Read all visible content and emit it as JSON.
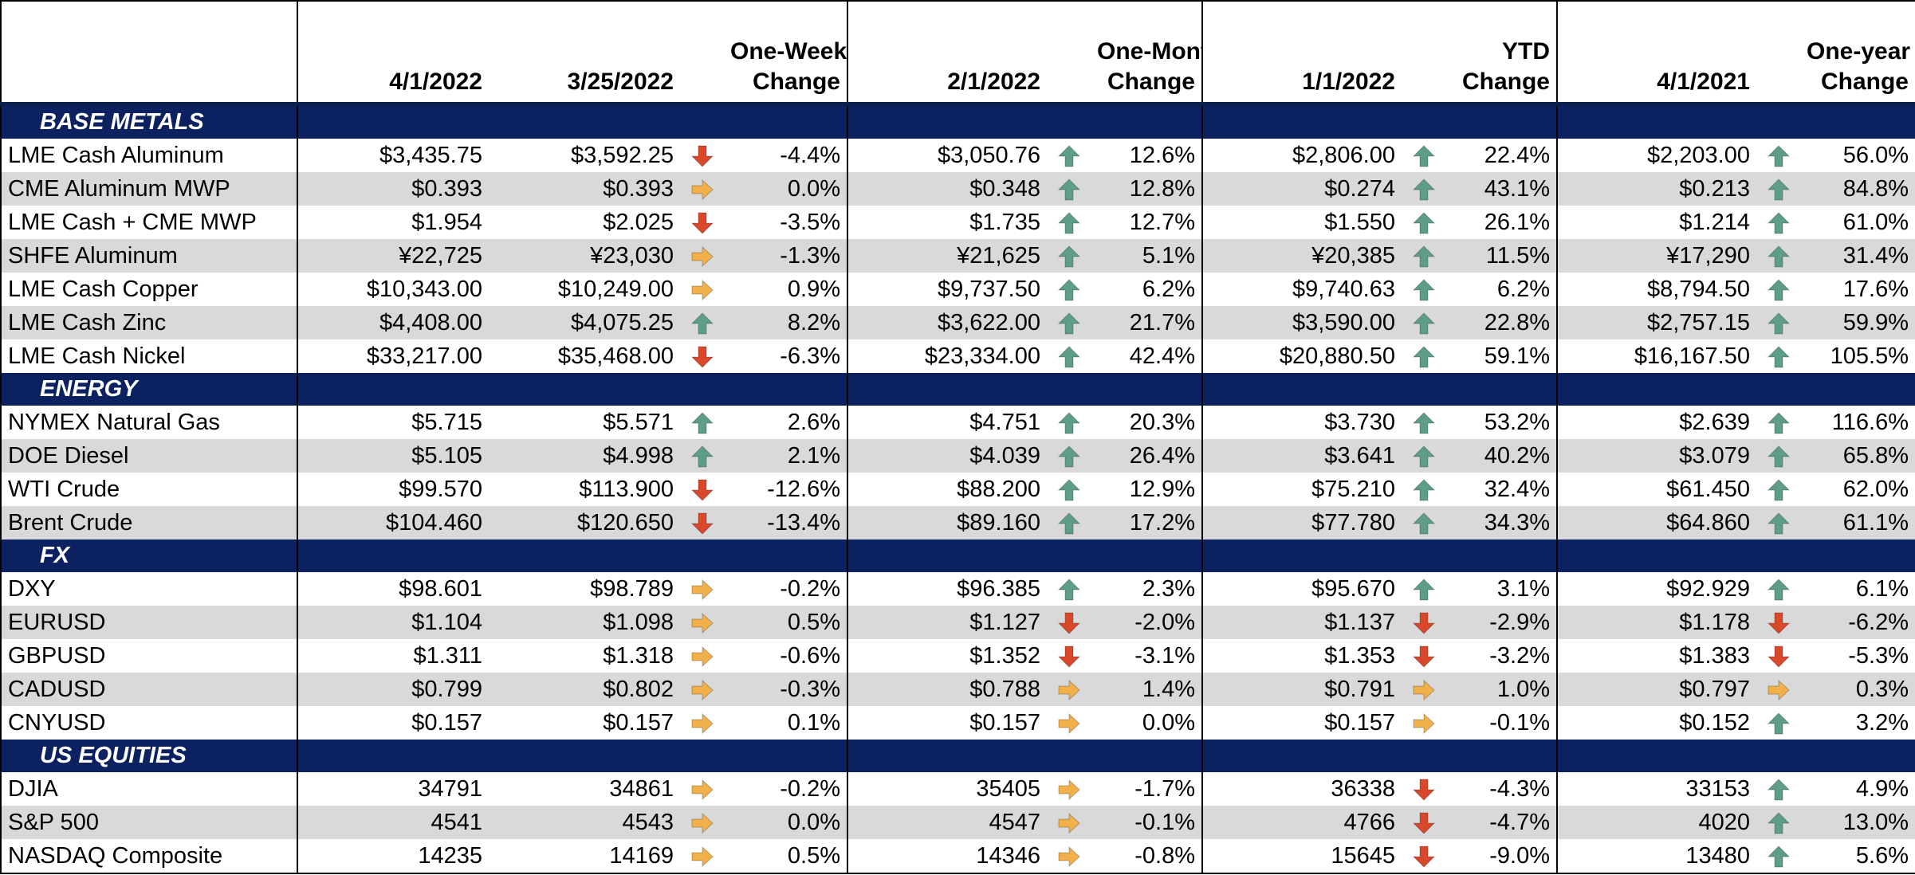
{
  "colors": {
    "header_band": "#0b2160",
    "alt_row": "#d9d9d9",
    "up": "#5f9e86",
    "down": "#d9482b",
    "flat": "#f1b04a"
  },
  "headers": [
    "",
    "4/1/2022",
    "3/25/2022",
    "",
    "One-Week Change",
    "2/1/2022",
    "",
    "One-Month Change",
    "1/1/2022",
    "",
    "YTD Change",
    "4/1/2021",
    "",
    "One-year Change"
  ],
  "sections": [
    {
      "title": "BASE METALS",
      "rows": [
        {
          "name": "LME Cash Aluminum",
          "v1": "$3,435.75",
          "v2": "$3,592.25",
          "a1": "down",
          "c1": "-4.4%",
          "v3": "$3,050.76",
          "a2": "up",
          "c2": "12.6%",
          "v4": "$2,806.00",
          "a3": "up",
          "c3": "22.4%",
          "v5": "$2,203.00",
          "a4": "up",
          "c4": "56.0%"
        },
        {
          "name": "CME Aluminum MWP",
          "v1": "$0.393",
          "v2": "$0.393",
          "a1": "flat",
          "c1": "0.0%",
          "v3": "$0.348",
          "a2": "up",
          "c2": "12.8%",
          "v4": "$0.274",
          "a3": "up",
          "c3": "43.1%",
          "v5": "$0.213",
          "a4": "up",
          "c4": "84.8%"
        },
        {
          "name": "LME Cash + CME MWP",
          "v1": "$1.954",
          "v2": "$2.025",
          "a1": "down",
          "c1": "-3.5%",
          "v3": "$1.735",
          "a2": "up",
          "c2": "12.7%",
          "v4": "$1.550",
          "a3": "up",
          "c3": "26.1%",
          "v5": "$1.214",
          "a4": "up",
          "c4": "61.0%"
        },
        {
          "name": "SHFE Aluminum",
          "v1": "¥22,725",
          "v2": "¥23,030",
          "a1": "flat",
          "c1": "-1.3%",
          "v3": "¥21,625",
          "a2": "up",
          "c2": "5.1%",
          "v4": "¥20,385",
          "a3": "up",
          "c3": "11.5%",
          "v5": "¥17,290",
          "a4": "up",
          "c4": "31.4%"
        },
        {
          "name": "LME Cash Copper",
          "v1": "$10,343.00",
          "v2": "$10,249.00",
          "a1": "flat",
          "c1": "0.9%",
          "v3": "$9,737.50",
          "a2": "up",
          "c2": "6.2%",
          "v4": "$9,740.63",
          "a3": "up",
          "c3": "6.2%",
          "v5": "$8,794.50",
          "a4": "up",
          "c4": "17.6%"
        },
        {
          "name": "LME Cash Zinc",
          "v1": "$4,408.00",
          "v2": "$4,075.25",
          "a1": "up",
          "c1": "8.2%",
          "v3": "$3,622.00",
          "a2": "up",
          "c2": "21.7%",
          "v4": "$3,590.00",
          "a3": "up",
          "c3": "22.8%",
          "v5": "$2,757.15",
          "a4": "up",
          "c4": "59.9%"
        },
        {
          "name": "LME Cash Nickel",
          "v1": "$33,217.00",
          "v2": "$35,468.00",
          "a1": "down",
          "c1": "-6.3%",
          "v3": "$23,334.00",
          "a2": "up",
          "c2": "42.4%",
          "v4": "$20,880.50",
          "a3": "up",
          "c3": "59.1%",
          "v5": "$16,167.50",
          "a4": "up",
          "c4": "105.5%"
        }
      ]
    },
    {
      "title": "ENERGY",
      "rows": [
        {
          "name": "NYMEX Natural Gas",
          "v1": "$5.715",
          "v2": "$5.571",
          "a1": "up",
          "c1": "2.6%",
          "v3": "$4.751",
          "a2": "up",
          "c2": "20.3%",
          "v4": "$3.730",
          "a3": "up",
          "c3": "53.2%",
          "v5": "$2.639",
          "a4": "up",
          "c4": "116.6%"
        },
        {
          "name": "DOE Diesel",
          "v1": "$5.105",
          "v2": "$4.998",
          "a1": "up",
          "c1": "2.1%",
          "v3": "$4.039",
          "a2": "up",
          "c2": "26.4%",
          "v4": "$3.641",
          "a3": "up",
          "c3": "40.2%",
          "v5": "$3.079",
          "a4": "up",
          "c4": "65.8%"
        },
        {
          "name": "WTI Crude",
          "v1": "$99.570",
          "v2": "$113.900",
          "a1": "down",
          "c1": "-12.6%",
          "v3": "$88.200",
          "a2": "up",
          "c2": "12.9%",
          "v4": "$75.210",
          "a3": "up",
          "c3": "32.4%",
          "v5": "$61.450",
          "a4": "up",
          "c4": "62.0%"
        },
        {
          "name": "Brent Crude",
          "v1": "$104.460",
          "v2": "$120.650",
          "a1": "down",
          "c1": "-13.4%",
          "v3": "$89.160",
          "a2": "up",
          "c2": "17.2%",
          "v4": "$77.780",
          "a3": "up",
          "c3": "34.3%",
          "v5": "$64.860",
          "a4": "up",
          "c4": "61.1%"
        }
      ]
    },
    {
      "title": "FX",
      "rows": [
        {
          "name": "DXY",
          "v1": "$98.601",
          "v2": "$98.789",
          "a1": "flat",
          "c1": "-0.2%",
          "v3": "$96.385",
          "a2": "up",
          "c2": "2.3%",
          "v4": "$95.670",
          "a3": "up",
          "c3": "3.1%",
          "v5": "$92.929",
          "a4": "up",
          "c4": "6.1%"
        },
        {
          "name": "EURUSD",
          "v1": "$1.104",
          "v2": "$1.098",
          "a1": "flat",
          "c1": "0.5%",
          "v3": "$1.127",
          "a2": "down",
          "c2": "-2.0%",
          "v4": "$1.137",
          "a3": "down",
          "c3": "-2.9%",
          "v5": "$1.178",
          "a4": "down",
          "c4": "-6.2%"
        },
        {
          "name": "GBPUSD",
          "v1": "$1.311",
          "v2": "$1.318",
          "a1": "flat",
          "c1": "-0.6%",
          "v3": "$1.352",
          "a2": "down",
          "c2": "-3.1%",
          "v4": "$1.353",
          "a3": "down",
          "c3": "-3.2%",
          "v5": "$1.383",
          "a4": "down",
          "c4": "-5.3%"
        },
        {
          "name": "CADUSD",
          "v1": "$0.799",
          "v2": "$0.802",
          "a1": "flat",
          "c1": "-0.3%",
          "v3": "$0.788",
          "a2": "flat",
          "c2": "1.4%",
          "v4": "$0.791",
          "a3": "flat",
          "c3": "1.0%",
          "v5": "$0.797",
          "a4": "flat",
          "c4": "0.3%"
        },
        {
          "name": "CNYUSD",
          "v1": "$0.157",
          "v2": "$0.157",
          "a1": "flat",
          "c1": "0.1%",
          "v3": "$0.157",
          "a2": "flat",
          "c2": "0.0%",
          "v4": "$0.157",
          "a3": "flat",
          "c3": "-0.1%",
          "v5": "$0.152",
          "a4": "up",
          "c4": "3.2%"
        }
      ]
    },
    {
      "title": "US EQUITIES",
      "rows": [
        {
          "name": "DJIA",
          "v1": "34791",
          "v2": "34861",
          "a1": "flat",
          "c1": "-0.2%",
          "v3": "35405",
          "a2": "flat",
          "c2": "-1.7%",
          "v4": "36338",
          "a3": "down",
          "c3": "-4.3%",
          "v5": "33153",
          "a4": "up",
          "c4": "4.9%"
        },
        {
          "name": "S&P 500",
          "v1": "4541",
          "v2": "4543",
          "a1": "flat",
          "c1": "0.0%",
          "v3": "4547",
          "a2": "flat",
          "c2": "-0.1%",
          "v4": "4766",
          "a3": "down",
          "c3": "-4.7%",
          "v5": "4020",
          "a4": "up",
          "c4": "13.0%"
        },
        {
          "name": "NASDAQ Composite",
          "v1": "14235",
          "v2": "14169",
          "a1": "flat",
          "c1": "0.5%",
          "v3": "14346",
          "a2": "flat",
          "c2": "-0.8%",
          "v4": "15645",
          "a3": "down",
          "c3": "-9.0%",
          "v5": "13480",
          "a4": "up",
          "c4": "5.6%"
        }
      ]
    }
  ]
}
